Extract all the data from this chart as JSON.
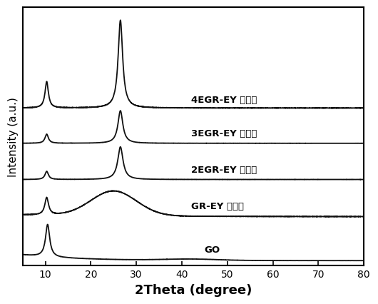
{
  "xlabel": "2Theta (degree)",
  "ylabel": "Intensity (a.u.)",
  "xlim": [
    5,
    80
  ],
  "ylim": [
    0,
    1.0
  ],
  "xticks": [
    10,
    20,
    30,
    40,
    50,
    60,
    70,
    80
  ],
  "line_color": "#111111",
  "background_color": "#ffffff",
  "labels": [
    "GO",
    "GR-EY 气凝胶",
    "2EGR-EY 气凝胶",
    "3EGR-EY 气凝胶",
    "4EGR-EY 气凝胶"
  ],
  "label_fontsize": 9.5,
  "xlabel_fontsize": 13,
  "ylabel_fontsize": 11,
  "tick_labelsize": 10,
  "linewidth": 1.3
}
